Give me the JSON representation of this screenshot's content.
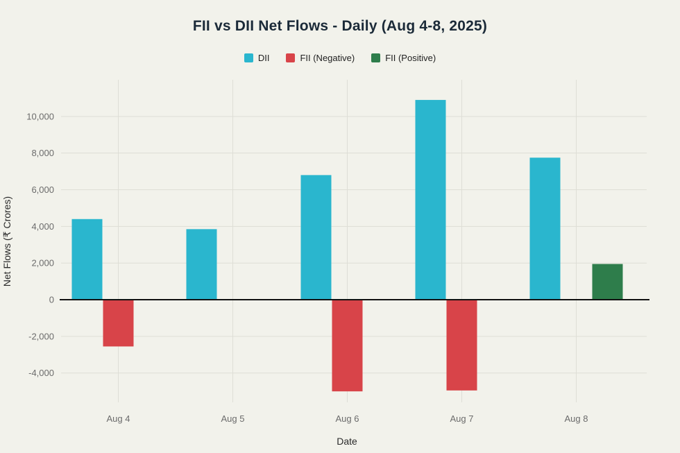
{
  "title": "FII vs DII Net Flows - Daily (Aug 4-8, 2025)",
  "legend": {
    "items": [
      {
        "label": "DII",
        "color": "#2ab6ce"
      },
      {
        "label": "FII (Negative)",
        "color": "#d84449"
      },
      {
        "label": "FII (Positive)",
        "color": "#2e7d4b"
      }
    ]
  },
  "colors": {
    "background": "#f2f2eb",
    "grid": "#dededix6",
    "grid_line": "#deded6",
    "zero_line": "#111111",
    "tick": "#6b6b6b",
    "axis_label": "#2a2a2a",
    "title": "#1b2a38"
  },
  "chart_data": {
    "type": "bar",
    "title": "FII vs DII Net Flows - Daily (Aug 4-8, 2025)",
    "xlabel": "Date",
    "ylabel": "Net Flows (₹ Crores)",
    "categories": [
      "Aug 4",
      "Aug 5",
      "Aug 6",
      "Aug 7",
      "Aug 8"
    ],
    "series": [
      {
        "name": "DII",
        "color": "#2ab6ce",
        "values": [
          4400,
          3850,
          6800,
          10900,
          7750
        ]
      },
      {
        "name": "FII (Negative)",
        "color": "#d84449",
        "values": [
          -2550,
          null,
          -5000,
          -4950,
          null
        ]
      },
      {
        "name": "FII (Positive)",
        "color": "#2e7d4b",
        "values": [
          null,
          null,
          null,
          null,
          1950
        ]
      }
    ],
    "yticks": [
      -4000,
      -2000,
      0,
      2000,
      4000,
      6000,
      8000,
      10000
    ],
    "ylim": [
      -5600,
      12000
    ],
    "grid": true,
    "legend_position": "top"
  }
}
